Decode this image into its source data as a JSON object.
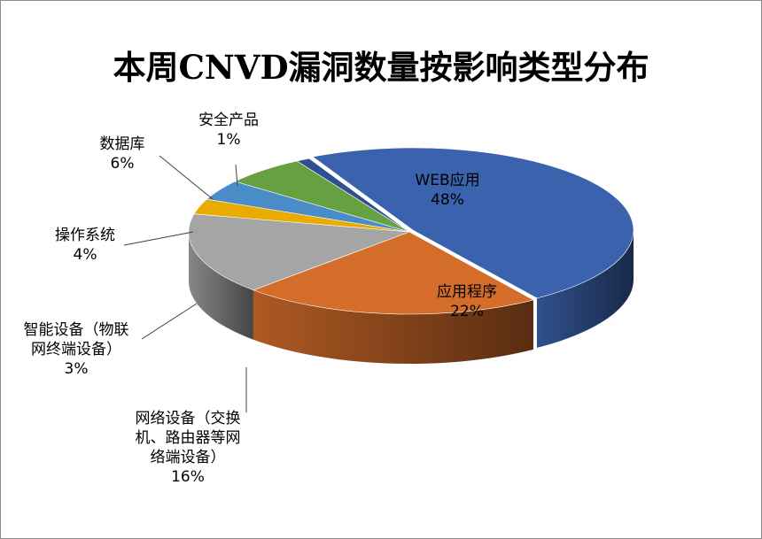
{
  "chart_data": {
    "type": "pie",
    "title": "本周CNVD漏洞数量按影响类型分布",
    "categories": [
      "WEB应用",
      "应用程序",
      "网络设备（交换机、路由器等网络端设备）",
      "智能设备（物联网终端设备）",
      "操作系统",
      "数据库",
      "安全产品"
    ],
    "values": [
      48,
      22,
      16,
      3,
      4,
      6,
      1
    ],
    "value_labels": [
      "48%",
      "22%",
      "16%",
      "3%",
      "4%",
      "6%",
      "1%"
    ],
    "label_lines": [
      [
        "WEB应用"
      ],
      [
        "应用程序"
      ],
      [
        "网络设备（交换",
        "机、路由器等网",
        "络端设备）"
      ],
      [
        "智能设备（物联",
        "网终端设备）"
      ],
      [
        "操作系统"
      ],
      [
        "数据库"
      ],
      [
        "安全产品"
      ]
    ],
    "colors": [
      "#3a62ad",
      "#d46c2a",
      "#a5a5a5",
      "#e8ac00",
      "#4a8cc8",
      "#66a040",
      "#2f4f8f"
    ],
    "style": "3d-exploded-pie",
    "legend": "none"
  }
}
